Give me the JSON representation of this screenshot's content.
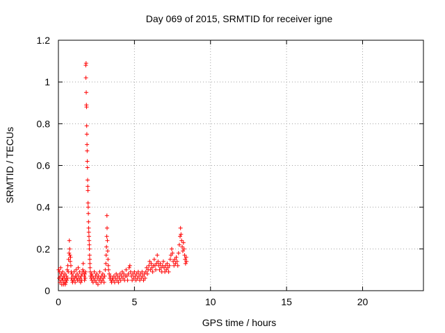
{
  "chart_data": {
    "type": "scatter",
    "title": "Day 069 of 2015, SRMTID for receiver igne",
    "xlabel": "GPS time / hours",
    "ylabel": "SRMTID / TECUs",
    "xlim": [
      0,
      24
    ],
    "ylim": [
      0,
      1.2
    ],
    "xticks": [
      0,
      5,
      10,
      15,
      20
    ],
    "yticks": [
      0,
      0.2,
      0.4,
      0.6,
      0.8,
      1,
      1.2
    ],
    "ytick_labels": [
      "0",
      "0.2",
      "0.4",
      "0.6",
      "0.8",
      "1",
      "1.2"
    ],
    "grid": true,
    "marker": "+",
    "series_color": "#ff0000",
    "points": [
      [
        0.02,
        0.1
      ],
      [
        0.05,
        0.06
      ],
      [
        0.08,
        0.09
      ],
      [
        0.1,
        0.04
      ],
      [
        0.12,
        0.07
      ],
      [
        0.15,
        0.11
      ],
      [
        0.18,
        0.05
      ],
      [
        0.2,
        0.08
      ],
      [
        0.22,
        0.03
      ],
      [
        0.25,
        0.06
      ],
      [
        0.28,
        0.09
      ],
      [
        0.3,
        0.05
      ],
      [
        0.33,
        0.03
      ],
      [
        0.35,
        0.07
      ],
      [
        0.38,
        0.04
      ],
      [
        0.4,
        0.06
      ],
      [
        0.43,
        0.08
      ],
      [
        0.45,
        0.03
      ],
      [
        0.48,
        0.05
      ],
      [
        0.5,
        0.04
      ],
      [
        0.52,
        0.07
      ],
      [
        0.55,
        0.05
      ],
      [
        0.58,
        0.1
      ],
      [
        0.6,
        0.06
      ],
      [
        0.62,
        0.12
      ],
      [
        0.65,
        0.09
      ],
      [
        0.67,
        0.15
      ],
      [
        0.7,
        0.18
      ],
      [
        0.72,
        0.24
      ],
      [
        0.74,
        0.2
      ],
      [
        0.76,
        0.17
      ],
      [
        0.78,
        0.14
      ],
      [
        0.8,
        0.16
      ],
      [
        0.82,
        0.12
      ],
      [
        0.84,
        0.09
      ],
      [
        0.86,
        0.06
      ],
      [
        0.88,
        0.08
      ],
      [
        0.9,
        0.05
      ],
      [
        0.93,
        0.04
      ],
      [
        0.96,
        0.07
      ],
      [
        1.0,
        0.05
      ],
      [
        1.03,
        0.09
      ],
      [
        1.06,
        0.06
      ],
      [
        1.1,
        0.04
      ],
      [
        1.13,
        0.07
      ],
      [
        1.16,
        0.1
      ],
      [
        1.2,
        0.06
      ],
      [
        1.23,
        0.08
      ],
      [
        1.26,
        0.05
      ],
      [
        1.3,
        0.11
      ],
      [
        1.33,
        0.07
      ],
      [
        1.36,
        0.05
      ],
      [
        1.4,
        0.09
      ],
      [
        1.43,
        0.06
      ],
      [
        1.46,
        0.04
      ],
      [
        1.5,
        0.07
      ],
      [
        1.53,
        0.05
      ],
      [
        1.56,
        0.08
      ],
      [
        1.6,
        0.1
      ],
      [
        1.63,
        0.13
      ],
      [
        1.66,
        0.09
      ],
      [
        1.7,
        0.07
      ],
      [
        1.72,
        0.05
      ],
      [
        1.74,
        0.08
      ],
      [
        1.76,
        0.06
      ],
      [
        1.78,
        0.09
      ],
      [
        1.8,
        1.08
      ],
      [
        1.82,
        1.09
      ],
      [
        1.81,
        1.02
      ],
      [
        1.83,
        0.95
      ],
      [
        1.84,
        0.89
      ],
      [
        1.85,
        0.88
      ],
      [
        1.86,
        0.79
      ],
      [
        1.87,
        0.75
      ],
      [
        1.88,
        0.7
      ],
      [
        1.89,
        0.67
      ],
      [
        1.9,
        0.62
      ],
      [
        1.91,
        0.59
      ],
      [
        1.92,
        0.53
      ],
      [
        1.93,
        0.5
      ],
      [
        1.94,
        0.48
      ],
      [
        1.95,
        0.42
      ],
      [
        1.96,
        0.4
      ],
      [
        1.97,
        0.37
      ],
      [
        1.98,
        0.33
      ],
      [
        1.99,
        0.3
      ],
      [
        2.0,
        0.28
      ],
      [
        2.01,
        0.26
      ],
      [
        2.02,
        0.24
      ],
      [
        2.03,
        0.22
      ],
      [
        2.04,
        0.2
      ],
      [
        2.05,
        0.17
      ],
      [
        2.06,
        0.15
      ],
      [
        2.07,
        0.13
      ],
      [
        2.08,
        0.11
      ],
      [
        2.1,
        0.09
      ],
      [
        2.12,
        0.07
      ],
      [
        2.15,
        0.06
      ],
      [
        2.18,
        0.08
      ],
      [
        2.2,
        0.05
      ],
      [
        2.24,
        0.07
      ],
      [
        2.28,
        0.04
      ],
      [
        2.32,
        0.06
      ],
      [
        2.36,
        0.09
      ],
      [
        2.4,
        0.05
      ],
      [
        2.44,
        0.07
      ],
      [
        2.48,
        0.04
      ],
      [
        2.52,
        0.08
      ],
      [
        2.56,
        0.06
      ],
      [
        2.6,
        0.03
      ],
      [
        2.64,
        0.07
      ],
      [
        2.68,
        0.05
      ],
      [
        2.72,
        0.09
      ],
      [
        2.76,
        0.06
      ],
      [
        2.8,
        0.04
      ],
      [
        2.84,
        0.07
      ],
      [
        2.88,
        0.05
      ],
      [
        2.92,
        0.08
      ],
      [
        2.96,
        0.06
      ],
      [
        3.0,
        0.04
      ],
      [
        3.04,
        0.07
      ],
      [
        3.08,
        0.1
      ],
      [
        3.12,
        0.13
      ],
      [
        3.14,
        0.17
      ],
      [
        3.16,
        0.21
      ],
      [
        3.18,
        0.26
      ],
      [
        3.19,
        0.36
      ],
      [
        3.2,
        0.3
      ],
      [
        3.22,
        0.24
      ],
      [
        3.24,
        0.19
      ],
      [
        3.26,
        0.15
      ],
      [
        3.28,
        0.12
      ],
      [
        3.3,
        0.1
      ],
      [
        3.34,
        0.08
      ],
      [
        3.38,
        0.06
      ],
      [
        3.42,
        0.07
      ],
      [
        3.46,
        0.05
      ],
      [
        3.5,
        0.04
      ],
      [
        3.55,
        0.06
      ],
      [
        3.6,
        0.05
      ],
      [
        3.65,
        0.07
      ],
      [
        3.7,
        0.04
      ],
      [
        3.75,
        0.06
      ],
      [
        3.8,
        0.08
      ],
      [
        3.85,
        0.05
      ],
      [
        3.9,
        0.07
      ],
      [
        3.95,
        0.04
      ],
      [
        4.0,
        0.06
      ],
      [
        4.05,
        0.08
      ],
      [
        4.1,
        0.05
      ],
      [
        4.15,
        0.07
      ],
      [
        4.2,
        0.09
      ],
      [
        4.25,
        0.06
      ],
      [
        4.3,
        0.08
      ],
      [
        4.35,
        0.05
      ],
      [
        4.4,
        0.07
      ],
      [
        4.45,
        0.1
      ],
      [
        4.5,
        0.07
      ],
      [
        4.55,
        0.05
      ],
      [
        4.6,
        0.08
      ],
      [
        4.65,
        0.11
      ],
      [
        4.7,
        0.12
      ],
      [
        4.75,
        0.09
      ],
      [
        4.8,
        0.07
      ],
      [
        4.85,
        0.05
      ],
      [
        4.9,
        0.08
      ],
      [
        4.95,
        0.06
      ],
      [
        5.0,
        0.09
      ],
      [
        5.05,
        0.07
      ],
      [
        5.1,
        0.05
      ],
      [
        5.15,
        0.08
      ],
      [
        5.2,
        0.06
      ],
      [
        5.25,
        0.09
      ],
      [
        5.3,
        0.07
      ],
      [
        5.35,
        0.05
      ],
      [
        5.4,
        0.08
      ],
      [
        5.45,
        0.06
      ],
      [
        5.5,
        0.09
      ],
      [
        5.55,
        0.07
      ],
      [
        5.6,
        0.05
      ],
      [
        5.65,
        0.08
      ],
      [
        5.7,
        0.06
      ],
      [
        5.75,
        0.09
      ],
      [
        5.8,
        0.11
      ],
      [
        5.85,
        0.08
      ],
      [
        5.9,
        0.1
      ],
      [
        5.95,
        0.12
      ],
      [
        6.0,
        0.14
      ],
      [
        6.05,
        0.1
      ],
      [
        6.1,
        0.13
      ],
      [
        6.15,
        0.11
      ],
      [
        6.2,
        0.09
      ],
      [
        6.25,
        0.12
      ],
      [
        6.3,
        0.15
      ],
      [
        6.35,
        0.12
      ],
      [
        6.4,
        0.1
      ],
      [
        6.45,
        0.13
      ],
      [
        6.5,
        0.17
      ],
      [
        6.55,
        0.14
      ],
      [
        6.6,
        0.12
      ],
      [
        6.65,
        0.1
      ],
      [
        6.7,
        0.13
      ],
      [
        6.75,
        0.11
      ],
      [
        6.8,
        0.09
      ],
      [
        6.85,
        0.12
      ],
      [
        6.9,
        0.14
      ],
      [
        6.95,
        0.11
      ],
      [
        7.0,
        0.09
      ],
      [
        7.05,
        0.12
      ],
      [
        7.1,
        0.1
      ],
      [
        7.15,
        0.13
      ],
      [
        7.2,
        0.11
      ],
      [
        7.25,
        0.09
      ],
      [
        7.3,
        0.12
      ],
      [
        7.35,
        0.15
      ],
      [
        7.4,
        0.17
      ],
      [
        7.45,
        0.2
      ],
      [
        7.5,
        0.18
      ],
      [
        7.55,
        0.14
      ],
      [
        7.6,
        0.12
      ],
      [
        7.65,
        0.15
      ],
      [
        7.7,
        0.13
      ],
      [
        7.75,
        0.16
      ],
      [
        7.8,
        0.14
      ],
      [
        7.85,
        0.12
      ],
      [
        7.9,
        0.18
      ],
      [
        7.95,
        0.22
      ],
      [
        8.0,
        0.26
      ],
      [
        8.03,
        0.3
      ],
      [
        8.06,
        0.27
      ],
      [
        8.1,
        0.24
      ],
      [
        8.14,
        0.21
      ],
      [
        8.18,
        0.19
      ],
      [
        8.22,
        0.23
      ],
      [
        8.26,
        0.2
      ],
      [
        8.3,
        0.17
      ],
      [
        8.33,
        0.15
      ],
      [
        8.36,
        0.13
      ],
      [
        8.4,
        0.16
      ],
      [
        8.42,
        0.14
      ]
    ]
  }
}
